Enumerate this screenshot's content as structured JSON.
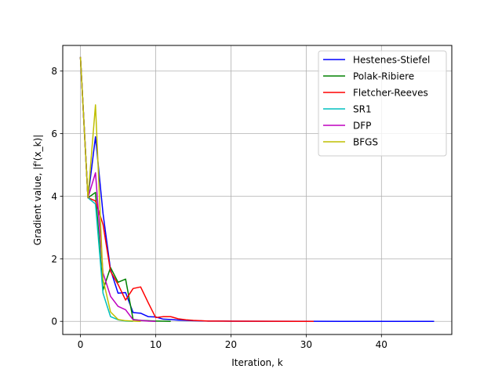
{
  "chart_data": {
    "type": "line",
    "xlabel": "Iteration, k",
    "ylabel": "Gradient value, |f'(x_k)|",
    "xlim": [
      -2.35,
      49.35
    ],
    "ylim": [
      -0.42,
      8.82
    ],
    "xticks": [
      0,
      10,
      20,
      30,
      40
    ],
    "yticks": [
      0,
      2,
      4,
      6,
      8
    ],
    "grid": true,
    "legend_position": "top-right",
    "series": [
      {
        "name": "Hestenes-Stiefel",
        "color": "#0000ff",
        "x": [
          0,
          1,
          2,
          3,
          4,
          5,
          6,
          7,
          8,
          9,
          10,
          11,
          12,
          13,
          14,
          15,
          16,
          17,
          18,
          19,
          20,
          25,
          30,
          35,
          40,
          45,
          47
        ],
        "y": [
          8.45,
          3.95,
          5.9,
          3.45,
          1.65,
          0.9,
          0.92,
          0.28,
          0.26,
          0.15,
          0.14,
          0.07,
          0.06,
          0.04,
          0.03,
          0.02,
          0.015,
          0.01,
          0.01,
          0.008,
          0.005,
          0.003,
          0.002,
          0.001,
          0.001,
          0.0,
          0.0
        ]
      },
      {
        "name": "Polak-Ribiere",
        "color": "#008000",
        "x": [
          0,
          1,
          2,
          3,
          4,
          5,
          6,
          7,
          8,
          9,
          10,
          11,
          12
        ],
        "y": [
          8.45,
          3.95,
          4.12,
          1.0,
          1.72,
          1.25,
          1.35,
          0.06,
          0.03,
          0.02,
          0.01,
          0.005,
          0.0
        ]
      },
      {
        "name": "Fletcher-Reeves",
        "color": "#ff0000",
        "x": [
          0,
          1,
          2,
          3,
          4,
          5,
          6,
          7,
          8,
          9,
          10,
          11,
          12,
          13,
          14,
          15,
          16,
          17,
          18,
          20,
          25,
          31
        ],
        "y": [
          8.45,
          3.95,
          3.85,
          3.1,
          1.6,
          1.18,
          0.68,
          1.05,
          1.1,
          0.6,
          0.12,
          0.15,
          0.15,
          0.08,
          0.05,
          0.03,
          0.02,
          0.01,
          0.01,
          0.005,
          0.002,
          0.0
        ]
      },
      {
        "name": "SR1",
        "color": "#00bfbf",
        "x": [
          0,
          1,
          2,
          3,
          4,
          5,
          6,
          7
        ],
        "y": [
          8.45,
          3.95,
          3.75,
          0.9,
          0.15,
          0.05,
          0.01,
          0.0
        ]
      },
      {
        "name": "DFP",
        "color": "#bf00bf",
        "x": [
          0,
          1,
          2,
          3,
          4,
          5,
          6,
          7,
          8,
          9,
          10
        ],
        "y": [
          8.45,
          3.95,
          4.75,
          1.55,
          0.8,
          0.48,
          0.37,
          0.05,
          0.03,
          0.01,
          0.0
        ]
      },
      {
        "name": "BFGS",
        "color": "#bfbf00",
        "x": [
          0,
          1,
          2,
          3,
          4,
          5,
          6,
          7,
          8
        ],
        "y": [
          8.45,
          3.95,
          6.92,
          1.35,
          0.3,
          0.06,
          0.02,
          0.01,
          0.0
        ]
      }
    ]
  }
}
